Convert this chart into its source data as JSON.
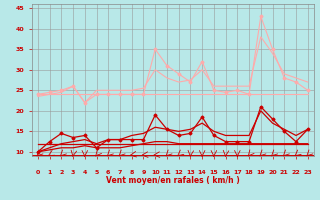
{
  "x": [
    0,
    1,
    2,
    3,
    4,
    5,
    6,
    7,
    8,
    9,
    10,
    11,
    12,
    13,
    14,
    15,
    16,
    17,
    18,
    19,
    20,
    21,
    22,
    23
  ],
  "series": [
    {
      "name": "max_gust",
      "color": "#ffaaaa",
      "linewidth": 0.8,
      "marker": "D",
      "markersize": 1.5,
      "values": [
        24,
        24.5,
        25,
        26,
        22,
        24,
        24,
        24,
        24,
        24,
        35,
        31,
        29,
        27,
        32,
        25,
        24.5,
        25,
        24,
        43,
        35,
        28,
        27,
        25
      ]
    },
    {
      "name": "mean_upper",
      "color": "#ffaaaa",
      "linewidth": 0.8,
      "marker": null,
      "markersize": 0,
      "values": [
        24,
        24,
        24,
        24,
        24,
        24,
        24,
        24,
        24,
        24,
        24,
        24,
        24,
        24,
        24,
        24,
        24,
        24,
        24,
        24,
        24,
        24,
        24,
        24
      ]
    },
    {
      "name": "trend_upper",
      "color": "#ffaaaa",
      "linewidth": 0.8,
      "marker": null,
      "markersize": 0,
      "values": [
        23.5,
        24,
        24.5,
        26,
        22,
        25,
        25,
        25,
        25,
        25.5,
        30,
        28,
        27,
        27.5,
        30,
        26,
        26,
        26,
        26,
        38,
        34,
        29,
        28,
        27
      ]
    },
    {
      "name": "max_wind",
      "color": "#cc0000",
      "linewidth": 0.9,
      "marker": "D",
      "markersize": 1.5,
      "values": [
        10,
        12.5,
        14.5,
        13.5,
        14,
        11,
        13,
        13,
        13,
        13,
        19,
        15.5,
        14,
        14.5,
        18.5,
        14,
        12.5,
        12.5,
        12.5,
        21,
        18,
        15,
        12.5,
        15.5
      ]
    },
    {
      "name": "mean_wind",
      "color": "#cc0000",
      "linewidth": 0.9,
      "marker": null,
      "markersize": 0,
      "values": [
        12,
        12,
        12,
        12,
        12,
        12,
        12,
        12,
        12,
        12,
        12,
        12,
        12,
        12,
        12,
        12,
        12,
        12,
        12,
        12,
        12,
        12,
        12,
        12
      ]
    },
    {
      "name": "trend_wind",
      "color": "#cc0000",
      "linewidth": 0.9,
      "marker": null,
      "markersize": 0,
      "values": [
        10,
        11,
        12,
        12.5,
        13,
        12,
        13,
        13,
        14,
        14.5,
        16,
        15.5,
        15,
        15.5,
        17,
        15,
        14,
        14,
        14,
        20,
        17,
        15.5,
        14,
        15.5
      ]
    },
    {
      "name": "min_wind",
      "color": "#cc0000",
      "linewidth": 0.9,
      "marker": null,
      "markersize": 0,
      "values": [
        10,
        10.5,
        11,
        11,
        11.5,
        11,
        11,
        11,
        11.5,
        12,
        12.5,
        12.5,
        12,
        12,
        12,
        12,
        12,
        12,
        12,
        12,
        12,
        12,
        12,
        12
      ]
    }
  ],
  "xlabel": "Vent moyen/en rafales ( km/h )",
  "xlim": [
    -0.5,
    23.5
  ],
  "ylim": [
    9,
    46
  ],
  "yticks": [
    10,
    15,
    20,
    25,
    30,
    35,
    40,
    45
  ],
  "xticks": [
    0,
    1,
    2,
    3,
    4,
    5,
    6,
    7,
    8,
    9,
    10,
    11,
    12,
    13,
    14,
    15,
    16,
    17,
    18,
    19,
    20,
    21,
    22,
    23
  ],
  "bg_color": "#b8e8e8",
  "grid_color": "#999999",
  "xlabel_color": "#cc0000",
  "tick_color": "#cc0000",
  "arrow_color": "#cc0000",
  "arrow_angles": [
    225,
    210,
    225,
    260,
    270,
    230,
    225,
    225,
    190,
    185,
    185,
    225,
    220,
    265,
    270,
    270,
    265,
    270,
    230,
    225,
    225,
    225,
    220,
    225
  ]
}
